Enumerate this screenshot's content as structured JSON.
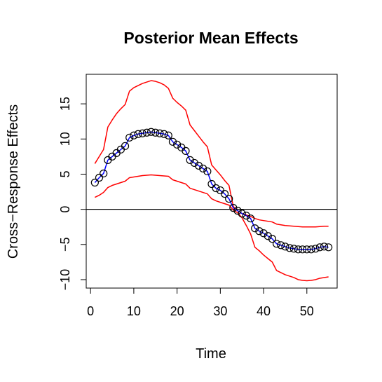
{
  "chart_data": {
    "type": "line",
    "title": "Posterior Mean Effects",
    "xlabel": "Time",
    "ylabel": "Cross−Response Effects",
    "xlim": [
      -1,
      57
    ],
    "ylim": [
      -11.2,
      19.2
    ],
    "xticks": [
      0,
      10,
      20,
      30,
      40,
      50
    ],
    "yticks": [
      -10,
      -5,
      0,
      5,
      10,
      15
    ],
    "ytick_labels": [
      "−10",
      "−5",
      "0",
      "5",
      "10",
      "15"
    ],
    "hline": 0,
    "grid": false,
    "legend": "none",
    "x": [
      1,
      2,
      3,
      4,
      5,
      6,
      7,
      8,
      9,
      10,
      11,
      12,
      13,
      14,
      15,
      16,
      17,
      18,
      19,
      20,
      21,
      22,
      23,
      24,
      25,
      26,
      27,
      28,
      29,
      30,
      31,
      32,
      33,
      34,
      35,
      36,
      37,
      38,
      39,
      40,
      41,
      42,
      43,
      44,
      45,
      46,
      47,
      48,
      49,
      50,
      51,
      52,
      53,
      54,
      55
    ],
    "series": [
      {
        "color": "#0000ff",
        "marker": "open-circle",
        "values": [
          3.8,
          4.5,
          5.1,
          7.0,
          7.5,
          8.0,
          8.5,
          9.0,
          10.2,
          10.5,
          10.7,
          10.8,
          10.9,
          11.0,
          10.9,
          10.8,
          10.7,
          10.5,
          9.6,
          9.2,
          8.8,
          8.3,
          7.0,
          6.6,
          6.2,
          5.8,
          5.4,
          3.6,
          3.0,
          2.7,
          2.2,
          1.5,
          0.2,
          -0.2,
          -0.6,
          -0.9,
          -1.3,
          -2.7,
          -3.1,
          -3.4,
          -3.8,
          -4.2,
          -4.9,
          -5.1,
          -5.3,
          -5.5,
          -5.6,
          -5.7,
          -5.7,
          -5.7,
          -5.7,
          -5.6,
          -5.4,
          -5.3,
          -5.4
        ]
      },
      {
        "color": "#ff0000",
        "values": [
          6.5,
          7.5,
          8.5,
          11.7,
          12.7,
          13.6,
          14.3,
          14.9,
          16.8,
          17.3,
          17.6,
          17.9,
          18.1,
          18.3,
          18.2,
          18.0,
          17.7,
          17.2,
          15.8,
          15.2,
          14.7,
          14.1,
          12.0,
          11.2,
          10.4,
          9.6,
          8.9,
          6.3,
          5.6,
          4.9,
          4.1,
          3.4,
          0.4,
          -0.2,
          -0.6,
          -0.8,
          -1.0,
          -1.3,
          -1.5,
          -1.6,
          -1.7,
          -1.8,
          -2.1,
          -2.2,
          -2.3,
          -2.35,
          -2.4,
          -2.45,
          -2.5,
          -2.5,
          -2.5,
          -2.5,
          -2.45,
          -2.4,
          -2.4
        ]
      },
      {
        "color": "#ff0000",
        "values": [
          1.7,
          2.0,
          2.4,
          3.1,
          3.4,
          3.6,
          3.8,
          4.0,
          4.5,
          4.6,
          4.7,
          4.8,
          4.85,
          4.9,
          4.85,
          4.8,
          4.75,
          4.7,
          4.2,
          4.0,
          3.8,
          3.6,
          3.0,
          2.8,
          2.6,
          2.4,
          2.2,
          1.5,
          1.2,
          1.0,
          0.8,
          0.6,
          -0.1,
          -0.5,
          -1.2,
          -2.3,
          -3.5,
          -5.4,
          -5.9,
          -6.5,
          -7.0,
          -7.5,
          -8.7,
          -9.0,
          -9.3,
          -9.5,
          -9.7,
          -10.0,
          -10.1,
          -10.15,
          -10.1,
          -10.0,
          -9.8,
          -9.7,
          -9.6
        ]
      }
    ]
  }
}
